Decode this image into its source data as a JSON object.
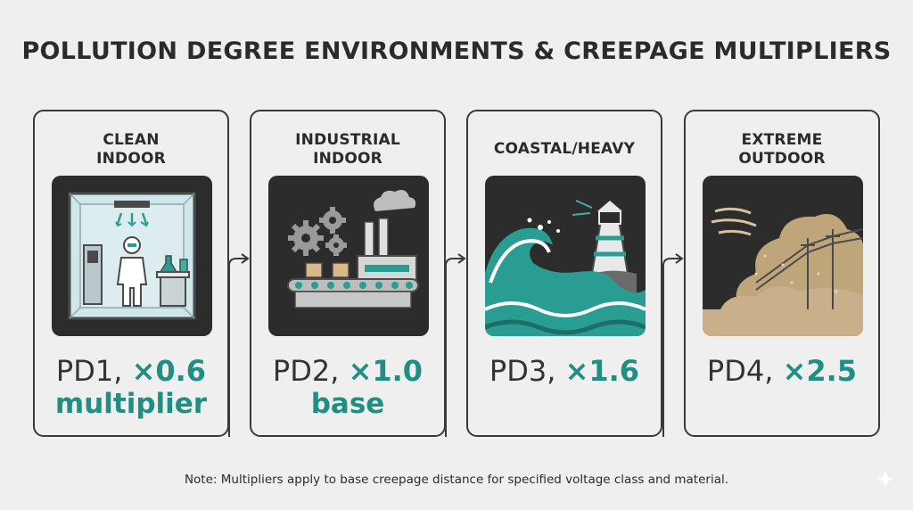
{
  "title": "POLLUTION DEGREE ENVIRONMENTS & CREEPAGE MULTIPLIERS",
  "cards": [
    {
      "title_line1": "CLEAN",
      "title_line2": "INDOOR",
      "pd": "PD1, ",
      "multiplier": "×0.6",
      "sub": "multiplier",
      "icon": "cleanroom-icon"
    },
    {
      "title_line1": "INDUSTRIAL",
      "title_line2": "INDOOR",
      "pd": "PD2, ",
      "multiplier": "×1.0",
      "sub": "base",
      "icon": "factory-icon"
    },
    {
      "title_line1": "COASTAL/HEAVY",
      "title_line2": "",
      "pd": "PD3, ",
      "multiplier": "×1.6",
      "sub": "",
      "icon": "coastal-wave-icon"
    },
    {
      "title_line1": "EXTREME",
      "title_line2": "OUTDOOR",
      "pd": "PD4, ",
      "multiplier": "×2.5",
      "sub": "",
      "icon": "dust-storm-icon"
    }
  ],
  "note": "Note: Multipliers apply to base creepage distance for specified voltage class and material.",
  "colors": {
    "accent": "#1f8f84",
    "panel": "#2c2c2c",
    "background": "#efefef",
    "border": "#3a3a3a"
  }
}
